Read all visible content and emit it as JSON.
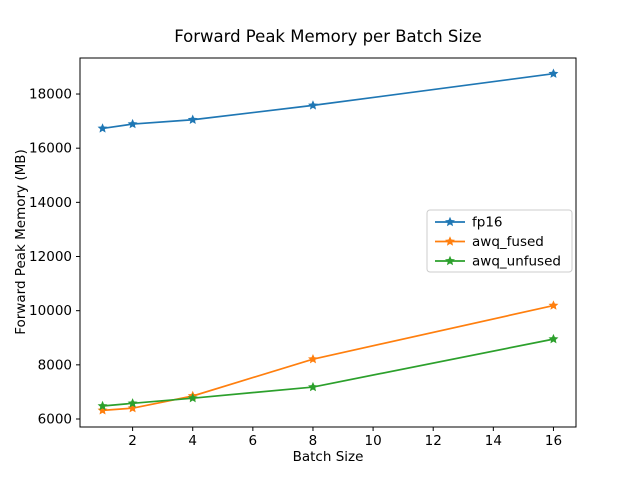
{
  "chart_data": {
    "type": "line",
    "title": "Forward Peak Memory per Batch Size",
    "xlabel": "Batch Size",
    "ylabel": "Forward Peak Memory (MB)",
    "x": [
      1,
      2,
      4,
      8,
      16
    ],
    "series": [
      {
        "name": "fp16",
        "color": "#1f77b4",
        "values": [
          16730,
          16890,
          17050,
          17580,
          18750
        ]
      },
      {
        "name": "awq_fused",
        "color": "#ff7f0e",
        "values": [
          6320,
          6400,
          6850,
          8210,
          10190
        ]
      },
      {
        "name": "awq_unfused",
        "color": "#2ca02c",
        "values": [
          6480,
          6580,
          6770,
          7180,
          8950
        ]
      }
    ],
    "xticks": [
      2,
      4,
      6,
      8,
      10,
      12,
      14,
      16
    ],
    "yticks": [
      6000,
      8000,
      10000,
      12000,
      14000,
      16000,
      18000
    ],
    "xlim": [
      0.25,
      16.75
    ],
    "ylim": [
      5705,
      19330
    ],
    "marker": "star",
    "grid": false,
    "legend_position": "center right",
    "axis_color": "#000000",
    "background_color": "#ffffff",
    "legend_border_color": "#cccccc"
  }
}
